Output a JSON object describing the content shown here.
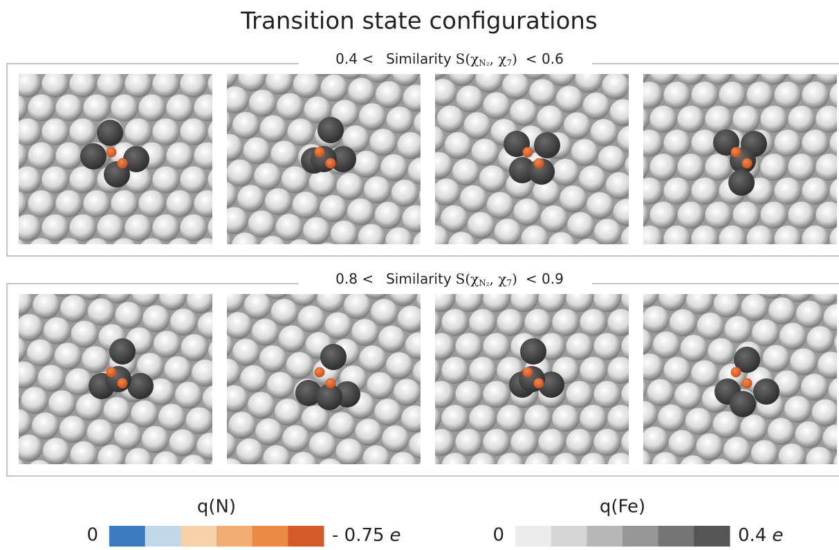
{
  "title": "Transition state configurations",
  "panels": [
    {
      "lower": "0.4 <",
      "label": "Similarity",
      "math": {
        "head": "S(χ",
        "sub1": "N₂",
        "mid": ", χ",
        "sub2": "7",
        "tail": ")"
      },
      "upper": "< 0.6"
    },
    {
      "lower": "0.8 <",
      "label": "Similarity",
      "math": {
        "head": "S(χ",
        "sub1": "N₂",
        "mid": ", χ",
        "sub2": "7",
        "tail": ")"
      },
      "upper": "< 0.9"
    }
  ],
  "colorbars": [
    {
      "title": "q(N)",
      "min": "0",
      "max": "- 0.75",
      "unit": "e",
      "colors": [
        "#3a7bbf",
        "#c3d7ea",
        "#f6d1a8",
        "#f2ad74",
        "#ec8a45",
        "#d45a27"
      ]
    },
    {
      "title": "q(Fe)",
      "min": "0",
      "max": "0.4",
      "unit": "e",
      "colors": [
        "#ececec",
        "#d6d6d6",
        "#b7b7b7",
        "#979797",
        "#747474",
        "#555555"
      ]
    }
  ]
}
